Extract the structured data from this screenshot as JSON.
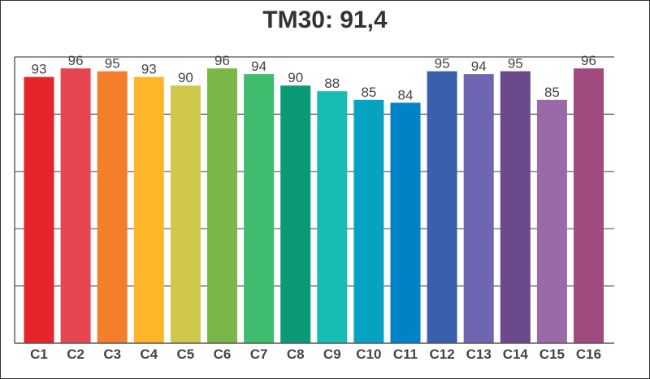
{
  "chart_data": {
    "type": "bar",
    "title": "TM30: 91,4",
    "xlabel": "",
    "ylabel": "",
    "ylim": [
      0,
      100
    ],
    "grid": true,
    "categories": [
      "C1",
      "C2",
      "C3",
      "C4",
      "C5",
      "C6",
      "C7",
      "C8",
      "C9",
      "C10",
      "C11",
      "C12",
      "C13",
      "C14",
      "C15",
      "C16"
    ],
    "values": [
      93,
      96,
      95,
      93,
      90,
      96,
      94,
      90,
      88,
      85,
      84,
      95,
      94,
      95,
      85,
      96
    ],
    "colors": [
      "#e4262b",
      "#e5464f",
      "#f57e2a",
      "#fdb52a",
      "#cfc84a",
      "#7ab748",
      "#3dbd6d",
      "#0a9a76",
      "#17bcb5",
      "#05a3c1",
      "#0083c6",
      "#3a5fac",
      "#6d66b0",
      "#6a4a8a",
      "#9a6aa8",
      "#a04a7e"
    ]
  }
}
